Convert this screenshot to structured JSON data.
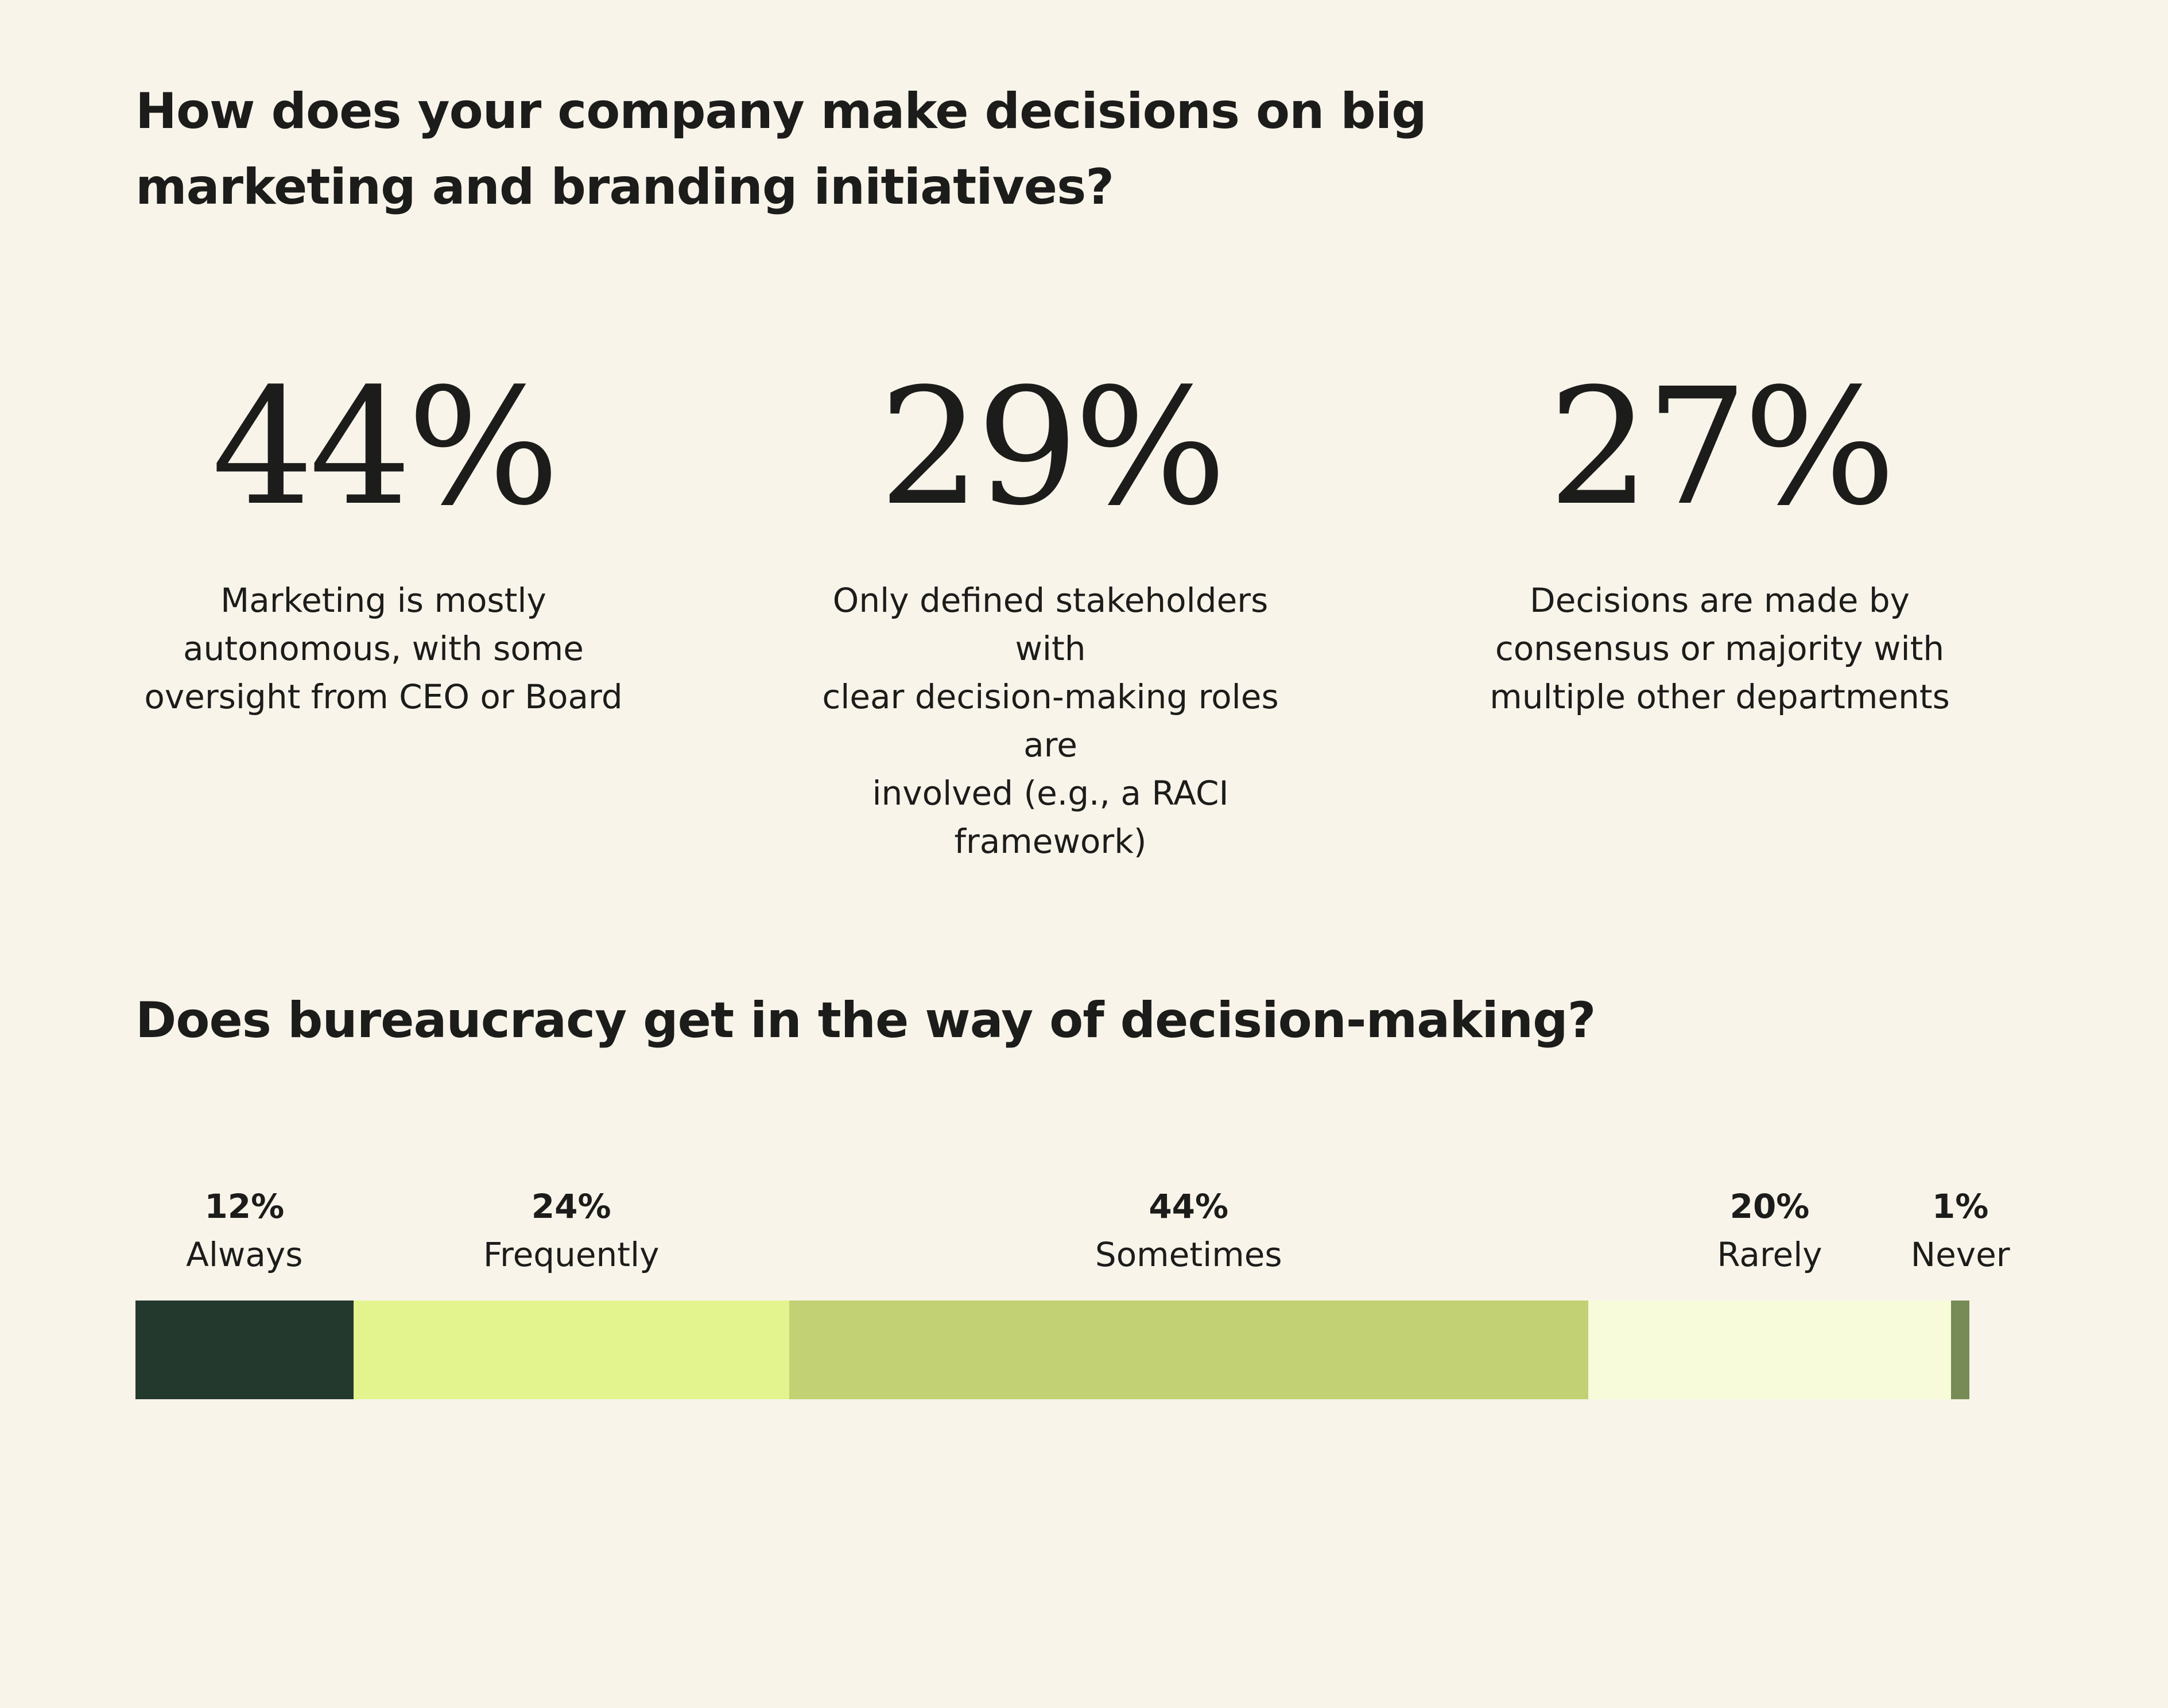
{
  "q1": {
    "title_line1": "How does your company make decisions on big",
    "title_line2": "marketing and branding initiatives?",
    "stats": [
      {
        "value": "44%",
        "desc_lines": [
          "Marketing is mostly",
          "autonomous, with some",
          "oversight from CEO or Board"
        ]
      },
      {
        "value": "29%",
        "desc_lines": [
          "Only defined stakeholders with",
          "clear decision-making roles are",
          "involved (e.g., a RACI framework)"
        ]
      },
      {
        "value": "27%",
        "desc_lines": [
          "Decisions are made by",
          "consensus or majority with",
          "multiple other departments"
        ]
      }
    ]
  },
  "q2": {
    "title": "Does bureaucracy get in the way of decision-making?"
  },
  "chart_data": {
    "type": "bar",
    "orientation": "horizontal-stacked",
    "title": "Does bureaucracy get in the way of decision-making?",
    "categories": [
      "Always",
      "Frequently",
      "Sometimes",
      "Rarely",
      "Never"
    ],
    "values": [
      12,
      24,
      44,
      20,
      1
    ],
    "labels": [
      "12%",
      "24%",
      "44%",
      "20%",
      "1%"
    ],
    "colors": [
      "#24392d",
      "#e3f38e",
      "#c1d173",
      "#f7fbd9",
      "#768b56"
    ],
    "unit": "%"
  }
}
